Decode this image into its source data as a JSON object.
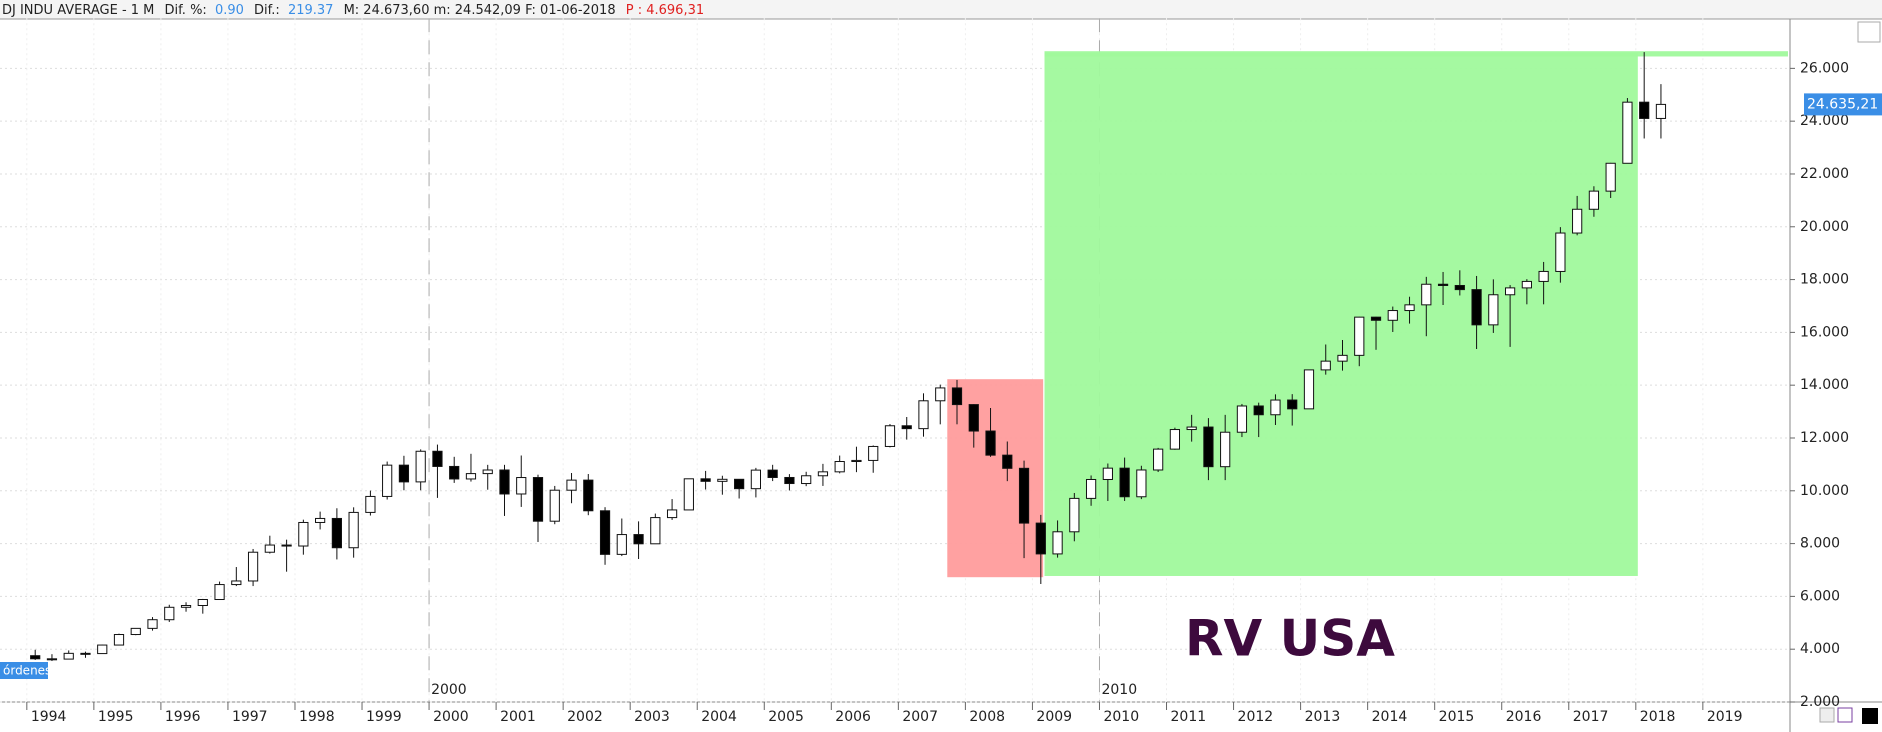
{
  "header": {
    "symbol": "DJ INDU AVERAGE -  1 M",
    "dif_pct_label": "Dif. %:",
    "dif_pct": "0.90",
    "dif_label": "Dif.:",
    "dif": "219.37",
    "range": "M: 24.673,60  m: 24.542,09  F: 01-06-2018",
    "p": "P : 4.696,31"
  },
  "orders_tag": "órdenes",
  "chart_data": {
    "type": "candlestick",
    "x": [
      1994,
      1994.25,
      1994.5,
      1994.75,
      1995,
      1995.25,
      1995.5,
      1995.75,
      1996,
      1996.25,
      1996.5,
      1996.75,
      1997,
      1997.25,
      1997.5,
      1997.75,
      1998,
      1998.25,
      1998.5,
      1998.75,
      1999,
      1999.25,
      1999.5,
      1999.75,
      2000,
      2000.25,
      2000.5,
      2000.75,
      2001,
      2001.25,
      2001.5,
      2001.75,
      2002,
      2002.25,
      2002.5,
      2002.75,
      2003,
      2003.25,
      2003.5,
      2003.75,
      2004,
      2004.25,
      2004.5,
      2004.75,
      2005,
      2005.25,
      2005.5,
      2005.75,
      2006,
      2006.25,
      2006.5,
      2006.75,
      2007,
      2007.25,
      2007.5,
      2007.75,
      2008,
      2008.25,
      2008.5,
      2008.75,
      2009,
      2009.25,
      2009.5,
      2009.75,
      2010,
      2010.25,
      2010.5,
      2010.75,
      2011,
      2011.25,
      2011.5,
      2011.75,
      2012,
      2012.25,
      2012.5,
      2012.75,
      2013,
      2013.25,
      2013.5,
      2013.75,
      2014,
      2014.25,
      2014.5,
      2014.75,
      2015,
      2015.25,
      2015.5,
      2015.75,
      2016,
      2016.25,
      2016.5,
      2016.75,
      2017,
      2017.25,
      2017.5,
      2017.75,
      2018,
      2018.25
    ],
    "open": [
      3754,
      3636,
      3625,
      3843,
      3834,
      4157,
      4556,
      4789,
      5117,
      5587,
      5655,
      5882,
      6448,
      6584,
      7673,
      7945,
      7908,
      8800,
      8952,
      7843,
      9181,
      9786,
      10971,
      10337,
      11497,
      10922,
      10448,
      10651,
      10787,
      9879,
      10502,
      8848,
      10022,
      10404,
      9243,
      7592,
      8342,
      7992,
      8985,
      9275,
      10454,
      10358,
      10435,
      10080,
      10783,
      10504,
      10275,
      10569,
      10718,
      11109,
      11150,
      11679,
      12463,
      12354,
      13409,
      13896,
      13265,
      12263,
      11350,
      10851,
      8776,
      7609,
      8447,
      9712,
      10428,
      10857,
      9774,
      10788,
      11578,
      12320,
      12414,
      10913,
      12218,
      13212,
      12880,
      13437,
      13104,
      14579,
      14910,
      15130,
      16577,
      16458,
      16827,
      17043,
      17823,
      17776,
      17620,
      16285,
      17425,
      17685,
      17930,
      18308,
      19763,
      20663,
      21350,
      22405,
      24719,
      24103
    ],
    "high": [
      3978,
      3811,
      3953,
      3908,
      4173,
      4589,
      4802,
      5216,
      5683,
      5778,
      5905,
      6561,
      7112,
      7796,
      8299,
      8149,
      8906,
      9211,
      9338,
      9374,
      10006,
      11107,
      11326,
      11568,
      11750,
      11287,
      11401,
      10983,
      10983,
      11337,
      10610,
      10184,
      10673,
      10635,
      9379,
      8950,
      8842,
      9137,
      9686,
      10462,
      10753,
      10570,
      10438,
      10868,
      10984,
      10631,
      10720,
      11020,
      11334,
      11670,
      11718,
      12529,
      12795,
      13692,
      14021,
      14198,
      13279,
      13136,
      11867,
      11143,
      9088,
      8877,
      9917,
      10580,
      11034,
      11258,
      10948,
      11625,
      12391,
      12876,
      12753,
      12876,
      13289,
      13338,
      13653,
      13661,
      14585,
      15542,
      15709,
      16588,
      16588,
      16978,
      17350,
      18103,
      18288,
      18351,
      18137,
      18009,
      17792,
      18016,
      18668,
      19987,
      21169,
      21535,
      22420,
      24876,
      26616,
      25403
    ],
    "low": [
      3593,
      3552,
      3625,
      3674,
      3832,
      4150,
      4530,
      4703,
      5032,
      5420,
      5346,
      5869,
      6391,
      6391,
      7622,
      6936,
      7580,
      8536,
      7400,
      7467,
      9063,
      9669,
      10020,
      10020,
      9731,
      10299,
      10349,
      10041,
      9047,
      9389,
      8062,
      8734,
      9529,
      9076,
      7197,
      7528,
      7416,
      7992,
      8897,
      9275,
      10048,
      9852,
      9708,
      9749,
      10368,
      10012,
      10175,
      10184,
      10661,
      10706,
      10683,
      11643,
      11939,
      12050,
      12517,
      12518,
      11635,
      11287,
      10365,
      7449,
      6470,
      7469,
      8087,
      9432,
      9614,
      9614,
      9686,
      10711,
      11555,
      11862,
      10404,
      10404,
      12035,
      12035,
      12492,
      12471,
      13104,
      14399,
      14551,
      14719,
      15340,
      16015,
      16333,
      15855,
      17037,
      17398,
      15370,
      15979,
      15450,
      17063,
      17063,
      17883,
      19677,
      20379,
      21090,
      22416,
      23344,
      23344
    ],
    "close": [
      3636,
      3625,
      3843,
      3834,
      4157,
      4556,
      4789,
      5117,
      5587,
      5655,
      5882,
      6448,
      6584,
      7673,
      7945,
      7908,
      8800,
      8952,
      7843,
      9181,
      9786,
      10971,
      10337,
      11497,
      10922,
      10448,
      10651,
      10787,
      9879,
      10502,
      8848,
      10022,
      10404,
      9243,
      7592,
      8342,
      7992,
      8985,
      9275,
      10454,
      10358,
      10435,
      10080,
      10783,
      10504,
      10275,
      10569,
      10718,
      11109,
      11150,
      11679,
      12463,
      12354,
      13409,
      13896,
      13265,
      12263,
      11350,
      10851,
      8776,
      7609,
      8447,
      9712,
      10428,
      10857,
      9774,
      10788,
      11578,
      12320,
      12414,
      10913,
      12218,
      13212,
      12880,
      13437,
      13104,
      14579,
      14910,
      15130,
      16577,
      16458,
      16827,
      17043,
      17823,
      17776,
      17620,
      16285,
      17425,
      17685,
      17930,
      18308,
      19763,
      20663,
      21350,
      22405,
      24719,
      24103,
      24635
    ],
    "up_color": "#ffffff",
    "down_color": "#000000",
    "xlim": [
      1993.6,
      2020.3
    ],
    "xticks": [
      1994,
      1995,
      1996,
      1997,
      1998,
      1999,
      2000,
      2001,
      2002,
      2003,
      2004,
      2005,
      2006,
      2007,
      2008,
      2009,
      2010,
      2011,
      2012,
      2013,
      2014,
      2015,
      2016,
      2017,
      2018,
      2019
    ],
    "decade_ticks": [
      2000,
      2010
    ],
    "ylim": [
      2000,
      27900
    ],
    "yticks": [
      {
        "value": 2000,
        "label": "2.000"
      },
      {
        "value": 4000,
        "label": "4.000"
      },
      {
        "value": 6000,
        "label": "6.000"
      },
      {
        "value": 8000,
        "label": "8.000"
      },
      {
        "value": 10000,
        "label": "10.000"
      },
      {
        "value": 12000,
        "label": "12.000"
      },
      {
        "value": 14000,
        "label": "14.000"
      },
      {
        "value": 16000,
        "label": "16.000"
      },
      {
        "value": 18000,
        "label": "18.000"
      },
      {
        "value": 20000,
        "label": "20.000"
      },
      {
        "value": 22000,
        "label": "22.000"
      },
      {
        "value": 24000,
        "label": "24.000"
      },
      {
        "value": 26000,
        "label": "26.000"
      }
    ],
    "grid": true,
    "regions": [
      {
        "x0": 2009.18,
        "x1": 2018.03,
        "y0": 6773,
        "y1": 26590,
        "color": "#a0f99c"
      },
      {
        "x0": 2009.18,
        "x1": 2020.27,
        "y0": 26450,
        "y1": 26650,
        "color": "#a0f99c"
      },
      {
        "x0": 2007.73,
        "x1": 2009.16,
        "y0": 6727,
        "y1": 14227,
        "color": "#ff9c9c"
      }
    ],
    "last_price": {
      "value": 24635.21,
      "label": "24.635,21"
    },
    "annotation": "RV USA"
  }
}
